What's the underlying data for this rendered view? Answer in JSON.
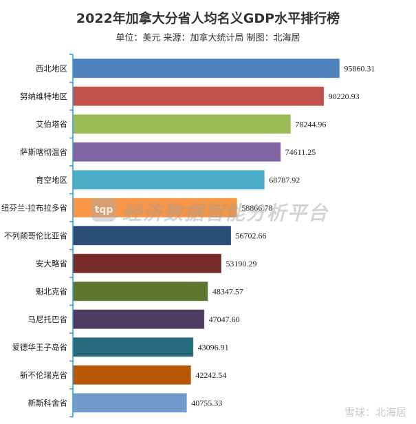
{
  "chart_data": {
    "type": "bar",
    "orientation": "horizontal",
    "title": "2022年加拿大分省人均名义GDP水平排行榜",
    "subtitle": "单位：美元   来源：加拿大统计局  制图：北海居",
    "categories": [
      "西北地区",
      "努纳维特地区",
      "艾伯塔省",
      "萨斯喀彻温省",
      "育空地区",
      "纽芬兰-拉布拉多省",
      "不列颠哥伦比亚省",
      "安大略省",
      "魁北克省",
      "马尼托巴省",
      "爱德华王子岛省",
      "新不伦瑞克省",
      "新斯科舍省"
    ],
    "values": [
      95860.31,
      90220.93,
      78244.96,
      74611.25,
      68787.92,
      58866.78,
      56702.66,
      53190.29,
      48347.57,
      47047.6,
      43096.91,
      42242.54,
      40755.33
    ],
    "value_labels": [
      "95860.31",
      "90220.93",
      "78244.96",
      "74611.25",
      "68787.92",
      "58866.78",
      "56702.66",
      "53190.29",
      "48347.57",
      "47047.60",
      "43096.91",
      "42242.54",
      "40755.33"
    ],
    "colors": [
      "#4F81BD",
      "#C0504D",
      "#9BBB59",
      "#8064A2",
      "#4BACC6",
      "#F79646",
      "#2C4D75",
      "#772C2A",
      "#5F7530",
      "#4D3B62",
      "#276A7C",
      "#B65708",
      "#729ACA"
    ],
    "xlim": [
      0,
      100000
    ],
    "grid": false,
    "legend": "none",
    "axis_color": "#2F9BE0"
  },
  "watermark": {
    "logo": "tqp",
    "text": "经济数据智能分析平台"
  },
  "footer": "雪球：北海居"
}
